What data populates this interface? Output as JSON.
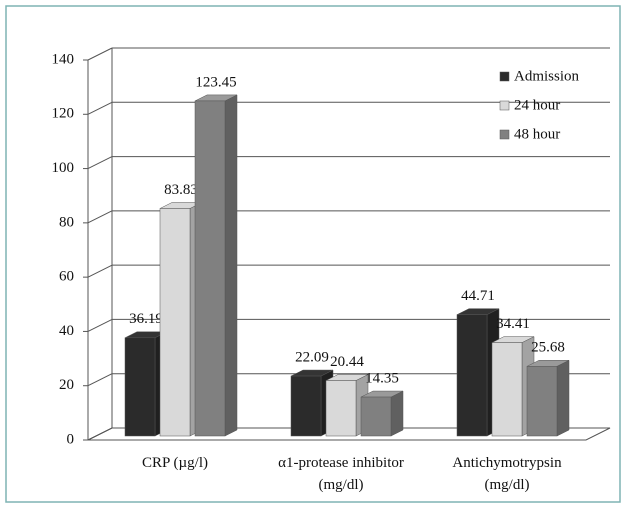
{
  "chart_data": {
    "type": "bar3d",
    "categories": [
      "CRP (µg/l)",
      "α1-protease inhibitor\n(mg/dl)",
      "Antichymotrypsin\n(mg/dl)"
    ],
    "series": [
      {
        "name": "Admission",
        "color": "#2b2b2b",
        "values": [
          36.19,
          22.09,
          44.71
        ]
      },
      {
        "name": "24 hour",
        "color": "#d9d9d9",
        "values": [
          83.83,
          20.44,
          34.41
        ]
      },
      {
        "name": "48 hour",
        "color": "#808080",
        "values": [
          123.45,
          14.35,
          25.68
        ]
      }
    ],
    "ylim": [
      0,
      140
    ],
    "yticks": [
      0,
      20,
      40,
      60,
      80,
      100,
      120,
      140
    ],
    "grid": true,
    "legend": "upper right"
  }
}
